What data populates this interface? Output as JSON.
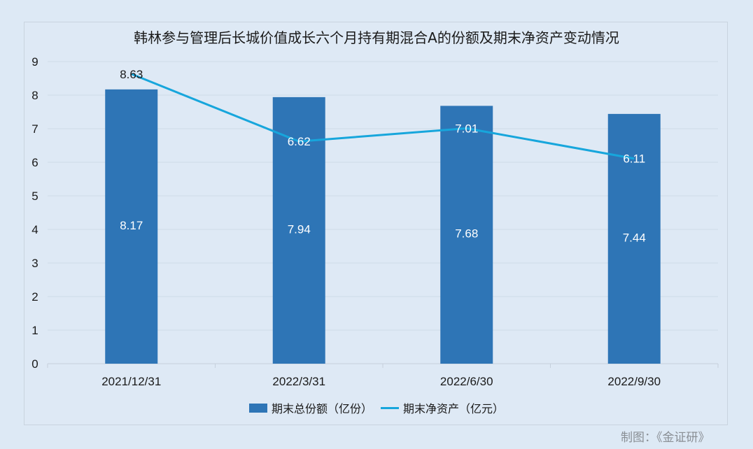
{
  "title": "韩林参与管理后长城价值成长六个月持有期混合A的份额及期末净资产变动情况",
  "legend": {
    "bar_label": "期末总份额（亿份）",
    "line_label": "期末净资产（亿元）"
  },
  "credit": "制图：《金证研》",
  "colors": {
    "bar": "#2e75b6",
    "line": "#17a6dc",
    "background": "#dde9f5",
    "gridline": "#cfdae6"
  },
  "chart_data": {
    "type": "bar",
    "title": "韩林参与管理后长城价值成长六个月持有期混合A的份额及期末净资产变动情况",
    "xlabel": "",
    "ylabel": "",
    "ylim": [
      0,
      9
    ],
    "yticks": [
      0,
      1,
      2,
      3,
      4,
      5,
      6,
      7,
      8,
      9
    ],
    "grid": true,
    "legend_position": "bottom",
    "categories": [
      "2021/12/31",
      "2022/3/31",
      "2022/6/30",
      "2022/9/30"
    ],
    "series": [
      {
        "name": "期末总份额（亿份）",
        "type": "bar",
        "values": [
          8.17,
          7.94,
          7.68,
          7.44
        ]
      },
      {
        "name": "期末净资产（亿元）",
        "type": "line",
        "values": [
          8.63,
          6.62,
          7.01,
          6.11
        ]
      }
    ]
  }
}
